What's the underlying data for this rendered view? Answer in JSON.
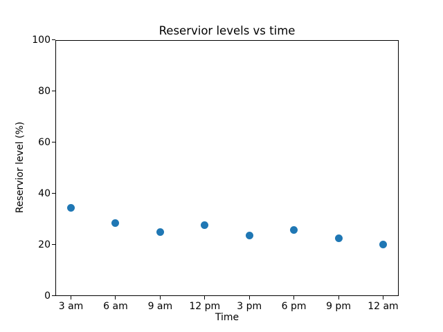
{
  "chart_data": {
    "type": "scatter",
    "title": "Reservior levels vs time",
    "xlabel": "Time",
    "ylabel": "Reservior level (%)",
    "categories": [
      "3 am",
      "6 am",
      "9 am",
      "12 pm",
      "3 pm",
      "6 pm",
      "9 pm",
      "12 am"
    ],
    "values": [
      34.4,
      28.5,
      25.0,
      27.5,
      23.4,
      25.7,
      22.3,
      20.0
    ],
    "ylim": [
      0,
      100
    ],
    "yticks": [
      0,
      20,
      40,
      60,
      80,
      100
    ],
    "marker_color": "#1f77b4",
    "grid": false,
    "legend_position": "none",
    "background_color": "#ffffff"
  }
}
